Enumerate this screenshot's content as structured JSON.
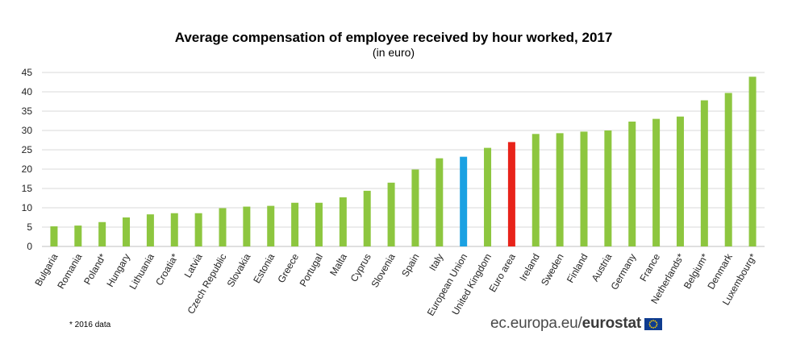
{
  "chart_data": {
    "type": "bar",
    "title": "Average compensation of employee received by hour worked, 2017",
    "subtitle": "(in euro)",
    "xlabel": "",
    "ylabel": "",
    "ylim": [
      0,
      45
    ],
    "yticks": [
      0,
      5,
      10,
      15,
      20,
      25,
      30,
      35,
      40,
      45
    ],
    "grid": true,
    "categories": [
      "Bulgaria",
      "Romania",
      "Poland*",
      "Hungary",
      "Lithuania",
      "Croatia*",
      "Latvia",
      "Czech Republic",
      "Slovakia",
      "Estonia",
      "Greece",
      "Portugal",
      "Malta",
      "Cyprus",
      "Slovenia",
      "Spain",
      "Italy",
      "European Union",
      "United Kingdom",
      "Euro area",
      "Ireland",
      "Sweden",
      "Finland",
      "Austria",
      "Germany",
      "France",
      "Netherlands*",
      "Belgium*",
      "Denmark",
      "Luxembourg*"
    ],
    "values": [
      5.2,
      5.4,
      6.3,
      7.5,
      8.3,
      8.6,
      8.6,
      9.9,
      10.3,
      10.5,
      11.3,
      11.3,
      12.7,
      14.4,
      16.5,
      19.9,
      22.8,
      23.2,
      25.5,
      27.0,
      29.1,
      29.3,
      29.7,
      30.0,
      32.3,
      33.0,
      33.6,
      37.8,
      39.7,
      43.9
    ],
    "highlight": {
      "European Union": "#1ba1e2",
      "Euro area": "#e8231a"
    },
    "bar_color": "#8dc63f"
  },
  "footnote": "* 2016 data",
  "logo": {
    "prefix": "ec.europa.eu/",
    "brand": "eurostat"
  }
}
